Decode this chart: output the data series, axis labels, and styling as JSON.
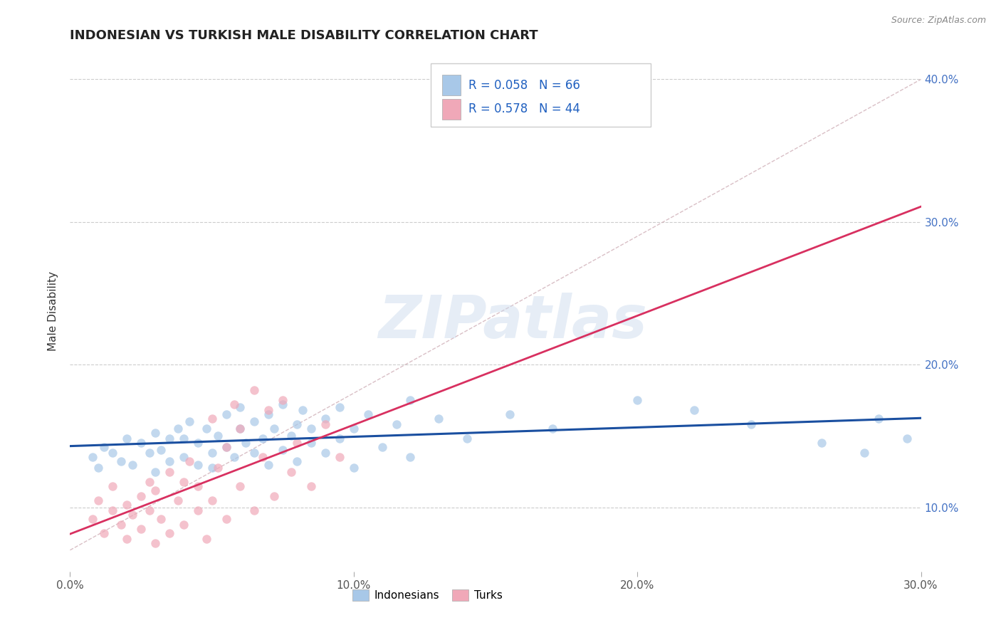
{
  "title": "INDONESIAN VS TURKISH MALE DISABILITY CORRELATION CHART",
  "source_text": "Source: ZipAtlas.com",
  "ylabel": "Male Disability",
  "xlim": [
    0.0,
    0.3
  ],
  "ylim": [
    0.055,
    0.42
  ],
  "yticks": [
    0.1,
    0.2,
    0.3,
    0.4
  ],
  "ytick_labels": [
    "10.0%",
    "20.0%",
    "30.0%",
    "40.0%"
  ],
  "xticks": [
    0.0,
    0.1,
    0.2,
    0.3
  ],
  "xtick_labels": [
    "0.0%",
    "10.0%",
    "20.0%",
    "30.0%"
  ],
  "indonesian_color": "#a8c8e8",
  "turkish_color": "#f0a8b8",
  "indonesian_line_color": "#1a4fa0",
  "turkish_line_color": "#d83060",
  "diagonal_color": "#d0b0b8",
  "R_indonesian": 0.058,
  "N_indonesian": 66,
  "R_turkish": 0.578,
  "N_turkish": 44,
  "legend_indonesians": "Indonesians",
  "legend_turks": "Turks",
  "watermark": "ZIPatlas",
  "background_color": "#ffffff",
  "indonesian_scatter": [
    [
      0.008,
      0.135
    ],
    [
      0.01,
      0.128
    ],
    [
      0.012,
      0.142
    ],
    [
      0.015,
      0.138
    ],
    [
      0.018,
      0.132
    ],
    [
      0.02,
      0.148
    ],
    [
      0.022,
      0.13
    ],
    [
      0.025,
      0.145
    ],
    [
      0.028,
      0.138
    ],
    [
      0.03,
      0.152
    ],
    [
      0.03,
      0.125
    ],
    [
      0.032,
      0.14
    ],
    [
      0.035,
      0.148
    ],
    [
      0.035,
      0.132
    ],
    [
      0.038,
      0.155
    ],
    [
      0.04,
      0.135
    ],
    [
      0.04,
      0.148
    ],
    [
      0.042,
      0.16
    ],
    [
      0.045,
      0.13
    ],
    [
      0.045,
      0.145
    ],
    [
      0.048,
      0.155
    ],
    [
      0.05,
      0.138
    ],
    [
      0.05,
      0.128
    ],
    [
      0.052,
      0.15
    ],
    [
      0.055,
      0.142
    ],
    [
      0.055,
      0.165
    ],
    [
      0.058,
      0.135
    ],
    [
      0.06,
      0.155
    ],
    [
      0.06,
      0.17
    ],
    [
      0.062,
      0.145
    ],
    [
      0.065,
      0.138
    ],
    [
      0.065,
      0.16
    ],
    [
      0.068,
      0.148
    ],
    [
      0.07,
      0.165
    ],
    [
      0.07,
      0.13
    ],
    [
      0.072,
      0.155
    ],
    [
      0.075,
      0.172
    ],
    [
      0.075,
      0.14
    ],
    [
      0.078,
      0.15
    ],
    [
      0.08,
      0.158
    ],
    [
      0.08,
      0.132
    ],
    [
      0.082,
      0.168
    ],
    [
      0.085,
      0.145
    ],
    [
      0.085,
      0.155
    ],
    [
      0.09,
      0.162
    ],
    [
      0.09,
      0.138
    ],
    [
      0.095,
      0.148
    ],
    [
      0.095,
      0.17
    ],
    [
      0.1,
      0.155
    ],
    [
      0.1,
      0.128
    ],
    [
      0.105,
      0.165
    ],
    [
      0.11,
      0.142
    ],
    [
      0.115,
      0.158
    ],
    [
      0.12,
      0.175
    ],
    [
      0.12,
      0.135
    ],
    [
      0.13,
      0.162
    ],
    [
      0.14,
      0.148
    ],
    [
      0.155,
      0.165
    ],
    [
      0.17,
      0.155
    ],
    [
      0.2,
      0.175
    ],
    [
      0.22,
      0.168
    ],
    [
      0.24,
      0.158
    ],
    [
      0.265,
      0.145
    ],
    [
      0.28,
      0.138
    ],
    [
      0.285,
      0.162
    ],
    [
      0.295,
      0.148
    ]
  ],
  "turkish_scatter": [
    [
      0.008,
      0.092
    ],
    [
      0.01,
      0.105
    ],
    [
      0.012,
      0.082
    ],
    [
      0.015,
      0.098
    ],
    [
      0.015,
      0.115
    ],
    [
      0.018,
      0.088
    ],
    [
      0.02,
      0.102
    ],
    [
      0.02,
      0.078
    ],
    [
      0.022,
      0.095
    ],
    [
      0.025,
      0.108
    ],
    [
      0.025,
      0.085
    ],
    [
      0.028,
      0.118
    ],
    [
      0.028,
      0.098
    ],
    [
      0.03,
      0.075
    ],
    [
      0.03,
      0.112
    ],
    [
      0.032,
      0.092
    ],
    [
      0.035,
      0.125
    ],
    [
      0.035,
      0.082
    ],
    [
      0.038,
      0.105
    ],
    [
      0.04,
      0.118
    ],
    [
      0.04,
      0.088
    ],
    [
      0.042,
      0.132
    ],
    [
      0.045,
      0.098
    ],
    [
      0.045,
      0.115
    ],
    [
      0.048,
      0.078
    ],
    [
      0.05,
      0.162
    ],
    [
      0.05,
      0.105
    ],
    [
      0.052,
      0.128
    ],
    [
      0.055,
      0.142
    ],
    [
      0.055,
      0.092
    ],
    [
      0.058,
      0.172
    ],
    [
      0.06,
      0.115
    ],
    [
      0.06,
      0.155
    ],
    [
      0.065,
      0.098
    ],
    [
      0.065,
      0.182
    ],
    [
      0.068,
      0.135
    ],
    [
      0.07,
      0.168
    ],
    [
      0.072,
      0.108
    ],
    [
      0.075,
      0.175
    ],
    [
      0.078,
      0.125
    ],
    [
      0.08,
      0.145
    ],
    [
      0.085,
      0.115
    ],
    [
      0.09,
      0.158
    ],
    [
      0.095,
      0.135
    ]
  ]
}
